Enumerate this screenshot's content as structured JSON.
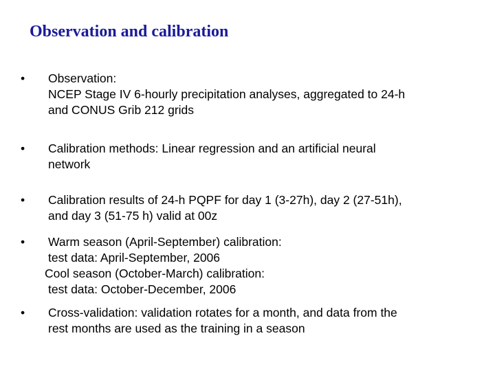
{
  "slide": {
    "title": "Observation and calibration",
    "bullet_glyph": "•",
    "bullets": [
      {
        "lines": [
          "Observation:",
          "NCEP Stage IV 6-hourly precipitation analyses, aggregated to 24-h",
          "and CONUS Grib 212 grids"
        ]
      },
      {
        "lines": [
          "Calibration methods: Linear regression and an artificial neural",
          "network"
        ]
      },
      {
        "lines": [
          "Calibration results of 24-h PQPF for day 1 (3-27h), day 2 (27-51h),",
          "and day 3 (51-75 h) valid at 00z"
        ]
      },
      {
        "lines": [
          "Warm season (April-September) calibration:",
          "test data: April-September, 2006",
          "Cool season (October-March) calibration:",
          "test data: October-December, 2006"
        ]
      },
      {
        "lines": [
          "Cross-validation: validation rotates for a month, and data from the",
          "rest months are used as the training in a season"
        ]
      }
    ]
  },
  "colors": {
    "title": "#1a1a99",
    "text": "#000000",
    "background": "#ffffff"
  }
}
